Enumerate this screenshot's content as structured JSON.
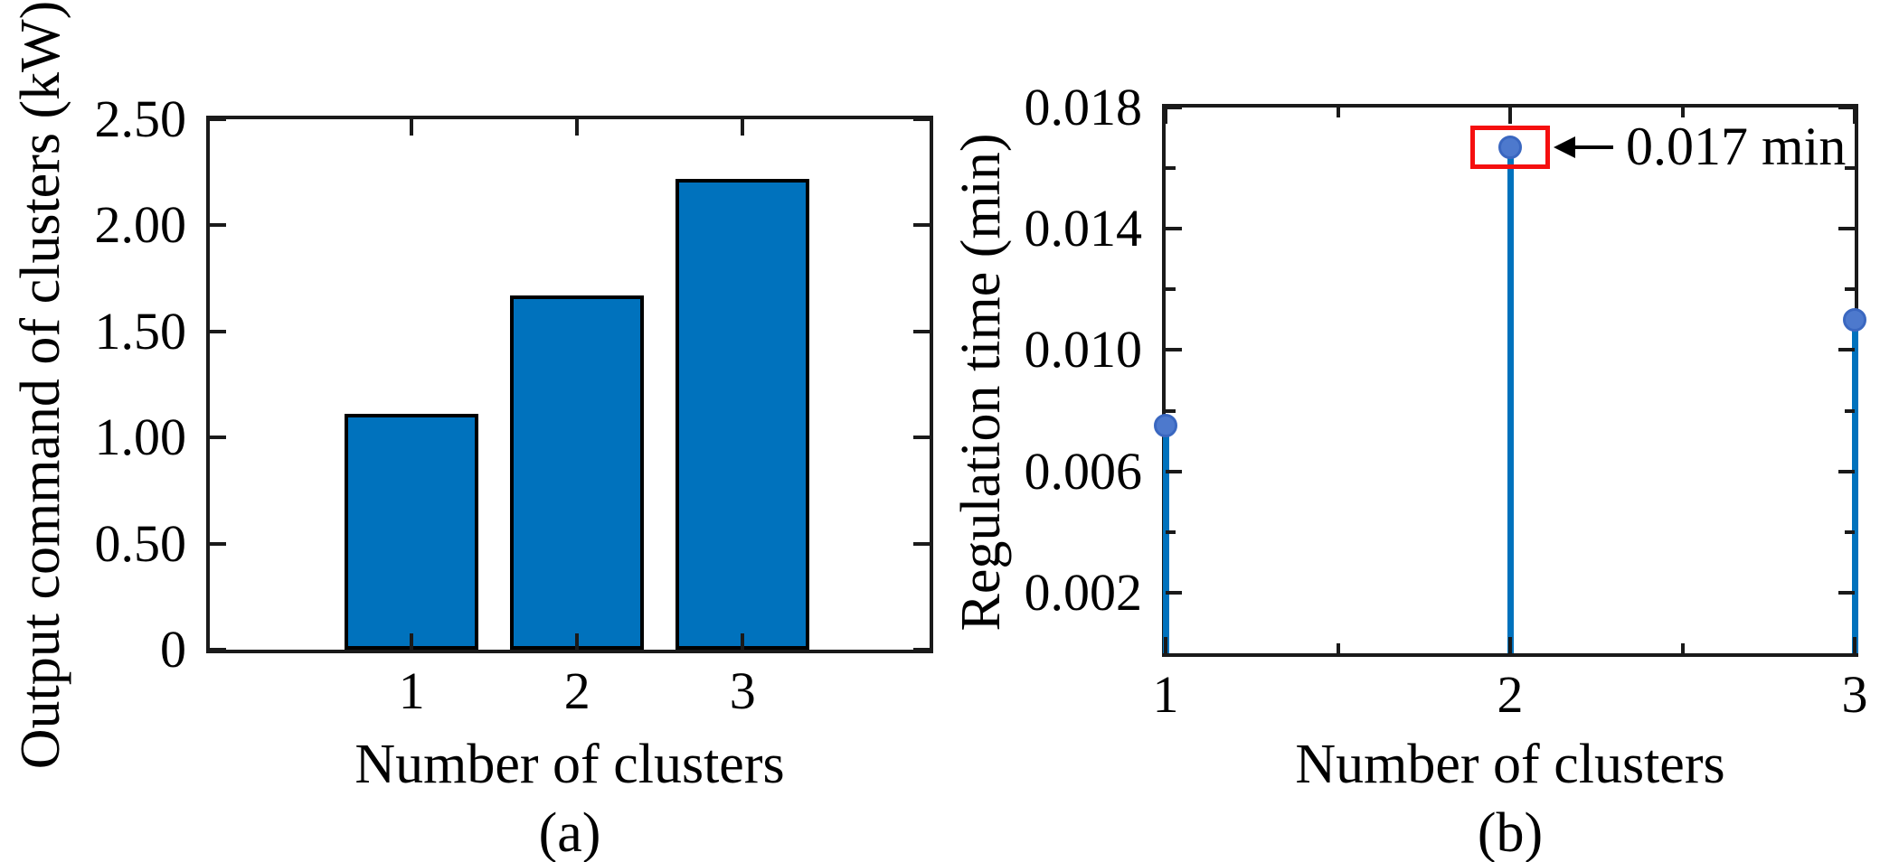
{
  "figure": {
    "background": "#ffffff",
    "axis_color": "#1a1a1a",
    "text_color": "#000000"
  },
  "chart_data": [
    {
      "type": "bar",
      "caption": "(a)",
      "xlabel": "Number of clusters",
      "ylabel": "Output command of clusters (kW)",
      "categories": [
        1,
        2,
        3
      ],
      "values": [
        1.11,
        1.67,
        2.22
      ],
      "bar_width_units": 0.81,
      "bar_fill_color": "#0072BD",
      "bar_edge_color": "#000000",
      "xlim": [
        -0.22,
        4.13
      ],
      "ylim": [
        0,
        2.5
      ],
      "grid": false,
      "tick_direction": "in",
      "yticks": [
        {
          "value": 0,
          "label": "0"
        },
        {
          "value": 0.5,
          "label": "0.50"
        },
        {
          "value": 1,
          "label": "1.00"
        },
        {
          "value": 1.5,
          "label": "1.50"
        },
        {
          "value": 2,
          "label": "2.00"
        },
        {
          "value": 2.5,
          "label": "2.50"
        }
      ],
      "xticks": [
        {
          "value": 1,
          "label": "1"
        },
        {
          "value": 2,
          "label": "2"
        },
        {
          "value": 3,
          "label": "3"
        }
      ]
    },
    {
      "type": "stem",
      "caption": "(b)",
      "xlabel": "Number of clusters",
      "ylabel": "Regulation time (min)",
      "x": [
        1,
        2,
        3
      ],
      "values": [
        0.0075,
        0.0167,
        0.011
      ],
      "stem_color": "#0072BD",
      "marker_fill_color": "#4D79CD",
      "marker_edge_color": "#3A67C0",
      "xlim": [
        1,
        3
      ],
      "ylim": [
        0,
        0.018
      ],
      "grid": false,
      "tick_direction": "in",
      "yticks": [
        {
          "value": 0.002,
          "label": "0.002"
        },
        {
          "value": 0.006,
          "label": "0.006"
        },
        {
          "value": 0.01,
          "label": "0.010"
        },
        {
          "value": 0.014,
          "label": "0.014"
        },
        {
          "value": 0.018,
          "label": "0.018"
        }
      ],
      "yticks_minor": [
        0.004,
        0.008,
        0.012,
        0.016
      ],
      "xticks": [
        {
          "value": 1,
          "label": "1"
        },
        {
          "value": 2,
          "label": "2"
        },
        {
          "value": 3,
          "label": "3"
        }
      ],
      "xticks_minor": [
        1.5,
        2.5
      ],
      "annotation": {
        "text": "0.017 min",
        "points_to_x": 2,
        "points_to_value": 0.0167,
        "box_color": "#F50F0F",
        "arrow_color": "#000000",
        "arrow_direction": "left"
      }
    }
  ]
}
